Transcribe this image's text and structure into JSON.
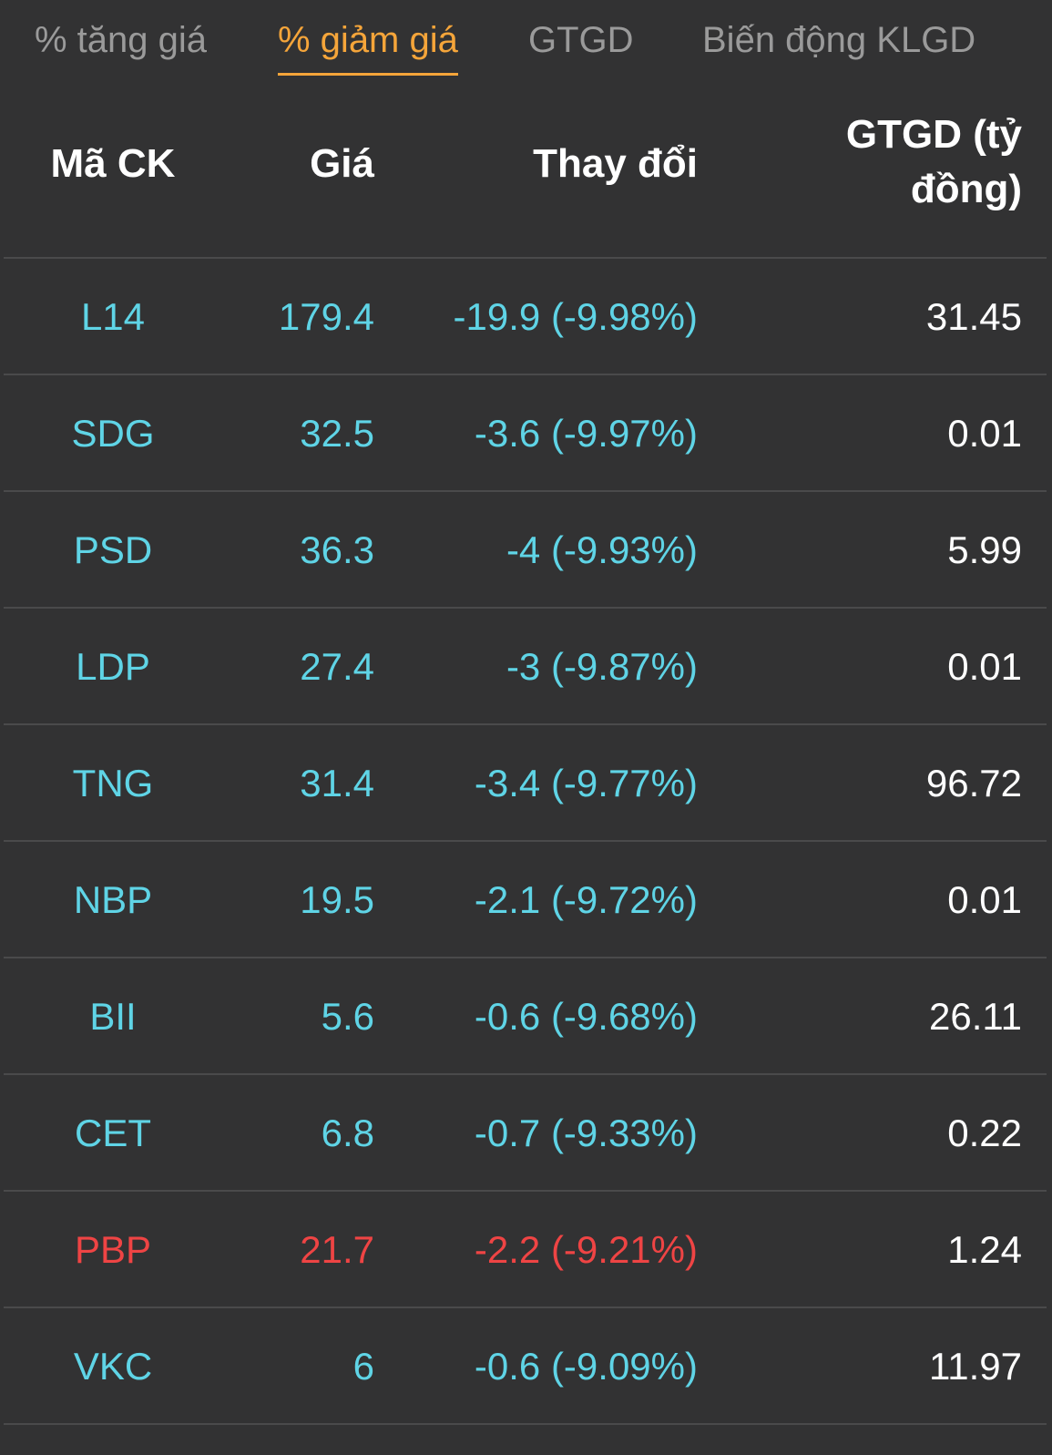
{
  "tabs": [
    {
      "label": "% tăng giá",
      "active": false
    },
    {
      "label": "% giảm giá",
      "active": true
    },
    {
      "label": "GTGD",
      "active": false
    },
    {
      "label": "Biến động KLGD",
      "active": false
    }
  ],
  "columns": {
    "code": "Mã CK",
    "price": "Giá",
    "change": "Thay đổi",
    "value": "GTGD (tỷ đồng)"
  },
  "colors": {
    "floor": "#5fd4e6",
    "down": "#ef4444",
    "accent": "#f5a53a",
    "background": "#323233"
  },
  "rows": [
    {
      "code": "L14",
      "price": "179.4",
      "change": "-19.9 (-9.98%)",
      "value": "31.45",
      "status": "floor"
    },
    {
      "code": "SDG",
      "price": "32.5",
      "change": "-3.6 (-9.97%)",
      "value": "0.01",
      "status": "floor"
    },
    {
      "code": "PSD",
      "price": "36.3",
      "change": "-4 (-9.93%)",
      "value": "5.99",
      "status": "floor"
    },
    {
      "code": "LDP",
      "price": "27.4",
      "change": "-3 (-9.87%)",
      "value": "0.01",
      "status": "floor"
    },
    {
      "code": "TNG",
      "price": "31.4",
      "change": "-3.4 (-9.77%)",
      "value": "96.72",
      "status": "floor"
    },
    {
      "code": "NBP",
      "price": "19.5",
      "change": "-2.1 (-9.72%)",
      "value": "0.01",
      "status": "floor"
    },
    {
      "code": "BII",
      "price": "5.6",
      "change": "-0.6 (-9.68%)",
      "value": "26.11",
      "status": "floor"
    },
    {
      "code": "CET",
      "price": "6.8",
      "change": "-0.7 (-9.33%)",
      "value": "0.22",
      "status": "floor"
    },
    {
      "code": "PBP",
      "price": "21.7",
      "change": "-2.2 (-9.21%)",
      "value": "1.24",
      "status": "down"
    },
    {
      "code": "VKC",
      "price": "6",
      "change": "-0.6 (-9.09%)",
      "value": "11.97",
      "status": "floor"
    }
  ]
}
